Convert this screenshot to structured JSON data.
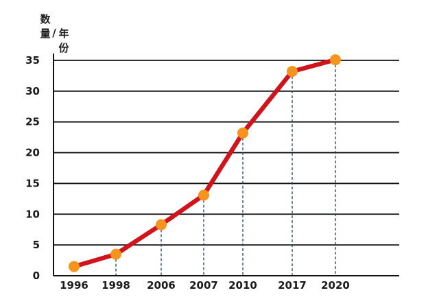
{
  "chart_data": {
    "type": "line",
    "title": "",
    "xlabel": "",
    "ylabel": [
      "数",
      "量",
      "/",
      "年",
      "份"
    ],
    "categories": [
      "1996",
      "1998",
      "2006",
      "2007",
      "2010",
      "2017",
      "2020"
    ],
    "series": [
      {
        "values": [
          1.5,
          3.5,
          8.3,
          13.1,
          23.2,
          33.2,
          35.1
        ]
      }
    ],
    "y_ticks": [
      "0",
      "5",
      "10",
      "15",
      "20",
      "25",
      "30",
      "35"
    ],
    "ylim": [
      0,
      36
    ],
    "grid": true,
    "drop_lines": true,
    "colors": {
      "line": "#d0141b",
      "marker": "#f7941d",
      "drop_line": "#1f3b73",
      "grid": "#111111"
    }
  }
}
